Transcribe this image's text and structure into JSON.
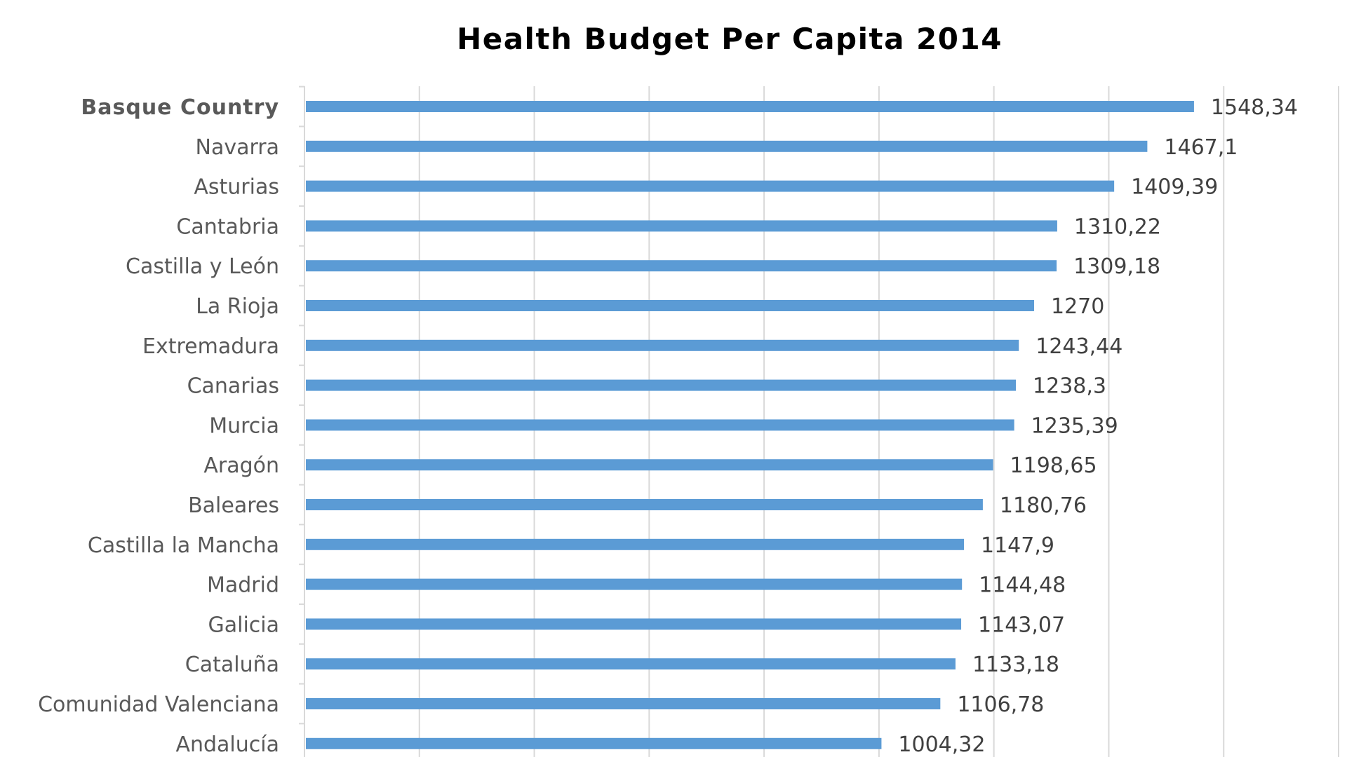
{
  "chart_data": {
    "type": "bar",
    "orientation": "horizontal",
    "title": "Health Budget Per Capita 2014",
    "xlabel": "",
    "ylabel": "",
    "xlim": [
      0,
      1800
    ],
    "grid": true,
    "legend": "none",
    "bar_color": "#5b9bd5",
    "categories": [
      "Basque Country",
      "Navarra",
      "Asturias",
      "Cantabria",
      "Castilla y León",
      "La Rioja",
      "Extremadura",
      "Canarias",
      "Murcia",
      "Aragón",
      "Baleares",
      "Castilla la Mancha",
      "Madrid",
      "Galicia",
      "Cataluña",
      "Comunidad Valenciana",
      "Andalucía"
    ],
    "values": [
      1548.34,
      1467.1,
      1409.39,
      1310.22,
      1309.18,
      1270,
      1243.44,
      1238.3,
      1235.39,
      1198.65,
      1180.76,
      1147.9,
      1144.48,
      1143.07,
      1133.18,
      1106.78,
      1004.32
    ],
    "data_labels": [
      "1548,34",
      "1467,1",
      "1409,39",
      "1310,22",
      "1309,18",
      "1270",
      "1243,44",
      "1238,3",
      "1235,39",
      "1198,65",
      "1180,76",
      "1147,9",
      "1144,48",
      "1143,07",
      "1133,18",
      "1106,78",
      "1004,32"
    ]
  }
}
